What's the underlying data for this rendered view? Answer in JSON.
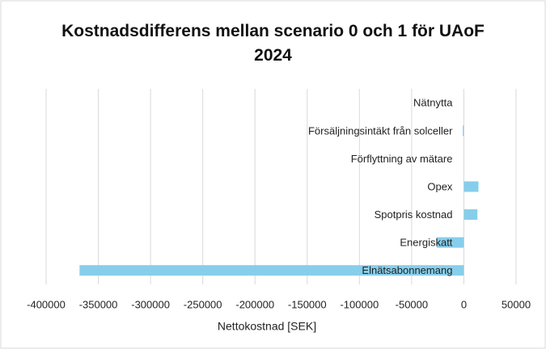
{
  "chart_data": {
    "type": "barh",
    "title": "Kostnadsdifferens mellan scenario 0 och 1 för UAoF 2024",
    "xlabel": "Nettokostnad [SEK]",
    "categories": [
      "Nätnytta",
      "Försäljningsintäkt från solceller",
      "Förflyttning av mätare",
      "Opex",
      "Spotpris kostnad",
      "Energiskatt",
      "Elnätsabonnemang"
    ],
    "values": [
      0,
      -1000,
      0,
      14000,
      13000,
      -26000,
      -368000
    ],
    "color": "#87ceeb",
    "xlim": [
      -400000,
      50000
    ],
    "xticks": [
      -400000,
      -350000,
      -300000,
      -250000,
      -200000,
      -150000,
      -100000,
      -50000,
      0,
      50000
    ],
    "grid": true
  }
}
